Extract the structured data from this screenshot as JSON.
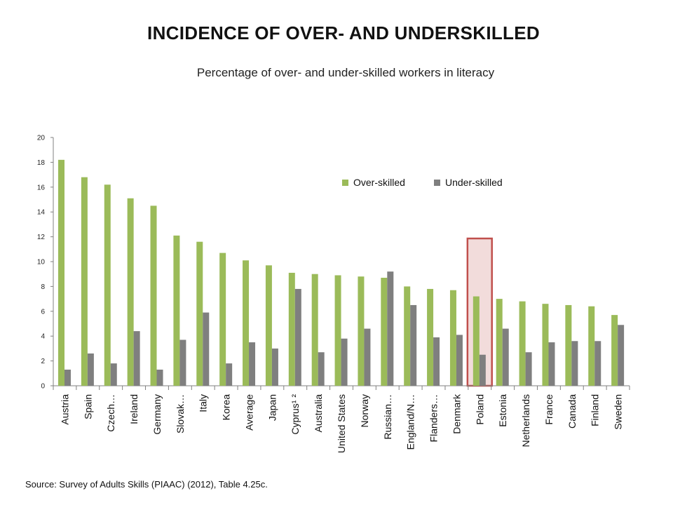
{
  "header": {
    "title": "INCIDENCE OF OVER- AND UNDERSKILLED",
    "subtitle": "Percentage of over- and under-skilled workers in literacy"
  },
  "footer": {
    "source": "Source: Survey of Adults Skills (PIAAC) (2012), Table 4.25c."
  },
  "colors": {
    "over": "#9bbb59",
    "under": "#7f7f7f",
    "highlight_fill": "#f2dcdb",
    "highlight_stroke": "#c0504d",
    "axis": "#808080"
  },
  "chart_data": {
    "type": "bar",
    "title": "INCIDENCE OF OVER- AND UNDERSKILLED",
    "subtitle": "Percentage of over- and under-skilled workers in literacy",
    "categories": [
      "Austria",
      "Spain",
      "Czech…",
      "Ireland",
      "Germany",
      "Slovak…",
      "Italy",
      "Korea",
      "Average",
      "Japan",
      "Cyprus¹ ²",
      "Australia",
      "United States",
      "Norway",
      "Russian…",
      "England/N…",
      "Flanders…",
      "Denmark",
      "Poland",
      "Estonia",
      "Netherlands",
      "France",
      "Canada",
      "Finland",
      "Sweden"
    ],
    "series": [
      {
        "name": "Over-skilled",
        "values": [
          18.2,
          16.8,
          16.2,
          15.1,
          14.5,
          12.1,
          11.6,
          10.7,
          10.1,
          9.7,
          9.1,
          9.0,
          8.9,
          8.8,
          8.7,
          8.0,
          7.8,
          7.7,
          7.2,
          7.0,
          6.8,
          6.6,
          6.5,
          6.4,
          5.7
        ]
      },
      {
        "name": "Under-skilled",
        "values": [
          1.3,
          2.6,
          1.8,
          4.4,
          1.3,
          3.7,
          5.9,
          1.8,
          3.5,
          3.0,
          7.8,
          2.7,
          3.8,
          4.6,
          9.2,
          6.5,
          3.9,
          4.1,
          2.5,
          4.6,
          2.7,
          3.5,
          3.6,
          3.6,
          4.9
        ]
      }
    ],
    "ylim": [
      0,
      20
    ],
    "yticks": [
      "0",
      "2",
      "4",
      "6",
      "8",
      "10",
      "12",
      "14",
      "16",
      "18",
      "20"
    ],
    "highlight_category": "Poland",
    "legend_position": "top-right",
    "grid": false
  }
}
